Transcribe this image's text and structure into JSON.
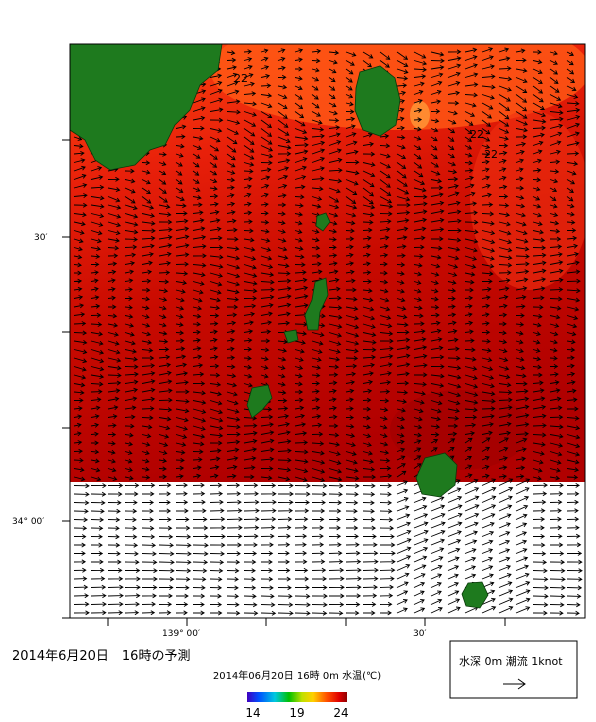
{
  "map": {
    "y_labels": [
      "30′",
      "34° 00′"
    ],
    "x_labels": [
      "139° 00′",
      "30′"
    ],
    "contour_labels": [
      "22",
      "22",
      "22"
    ],
    "caption": "2014年6月20日　16時の予測",
    "colorbar": {
      "title": "2014年06月20日 16時 0m 水温(℃)",
      "range": [
        14,
        24
      ],
      "ticks": [
        14,
        19,
        24
      ]
    },
    "legend": "水深 0m 潮流 1knot"
  }
}
